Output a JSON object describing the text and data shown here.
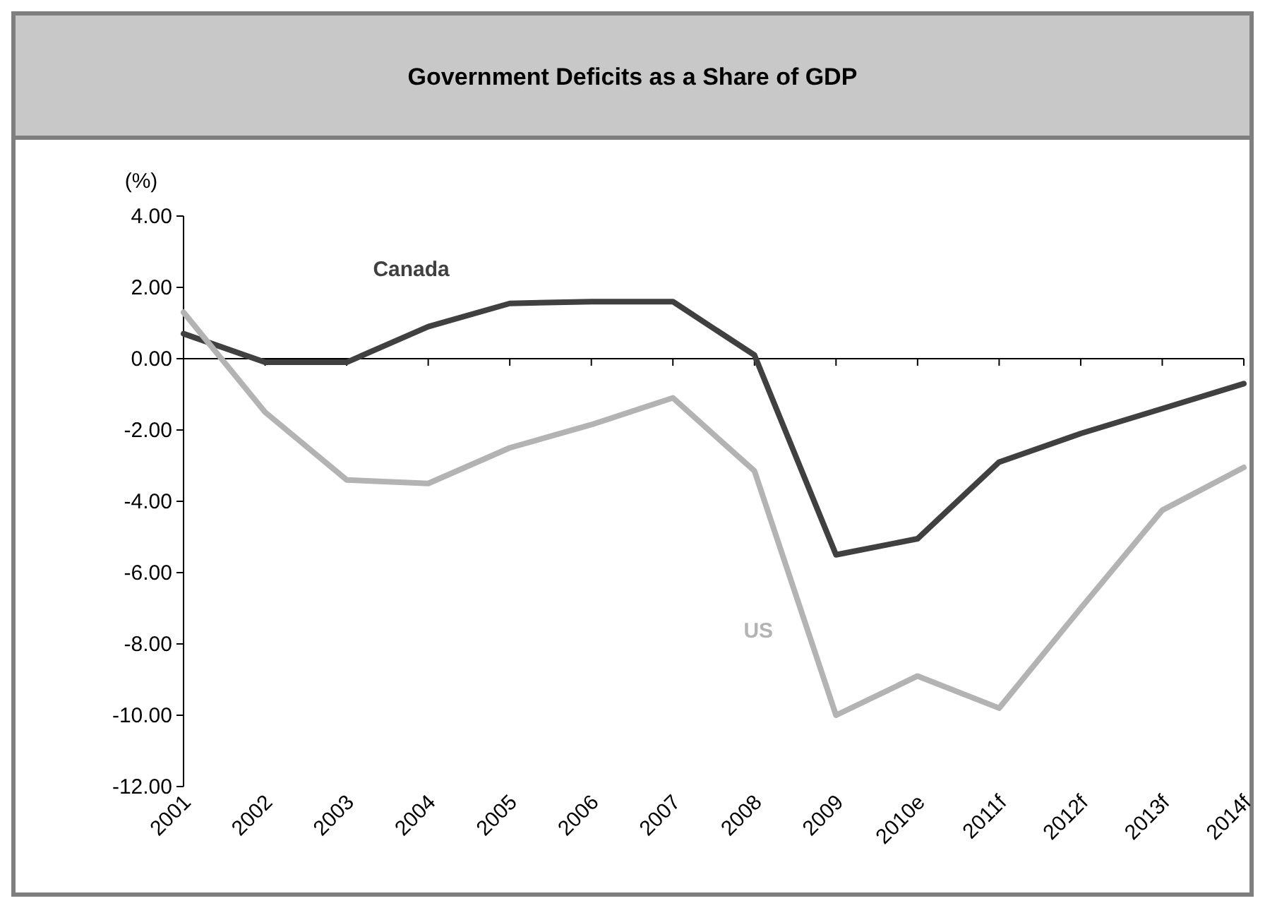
{
  "chart_data": {
    "type": "line",
    "title": "Government Deficits as a Share of GDP",
    "ylabel": "(%)",
    "categories": [
      "2001",
      "2002",
      "2003",
      "2004",
      "2005",
      "2006",
      "2007",
      "2008",
      "2009",
      "2010e",
      "2011f",
      "2012f",
      "2013f",
      "2014f"
    ],
    "series": [
      {
        "name": "Canada",
        "color": "#404040",
        "values": [
          0.7,
          -0.1,
          -0.1,
          0.9,
          1.55,
          1.6,
          1.6,
          0.1,
          -5.5,
          -5.05,
          -2.9,
          -2.1,
          -1.4,
          -0.7
        ]
      },
      {
        "name": "US",
        "color": "#b3b3b3",
        "values": [
          1.3,
          -1.5,
          -3.4,
          -3.5,
          -2.5,
          -1.85,
          -1.1,
          -3.15,
          -10.0,
          -8.9,
          -9.8,
          -7.0,
          -4.25,
          -3.05
        ]
      }
    ],
    "ylim": [
      -12,
      4
    ],
    "yticks": [
      {
        "value": -12,
        "label": "-12.00"
      },
      {
        "value": -10,
        "label": "-10.00"
      },
      {
        "value": -8,
        "label": "-8.00"
      },
      {
        "value": -6,
        "label": "-6.00"
      },
      {
        "value": -4,
        "label": "-4.00"
      },
      {
        "value": -2,
        "label": "-2.00"
      },
      {
        "value": 0,
        "label": "0.00"
      },
      {
        "value": 2,
        "label": "2.00"
      },
      {
        "value": 4,
        "label": "4.00"
      }
    ],
    "marker": "none",
    "line_style": "solid"
  }
}
